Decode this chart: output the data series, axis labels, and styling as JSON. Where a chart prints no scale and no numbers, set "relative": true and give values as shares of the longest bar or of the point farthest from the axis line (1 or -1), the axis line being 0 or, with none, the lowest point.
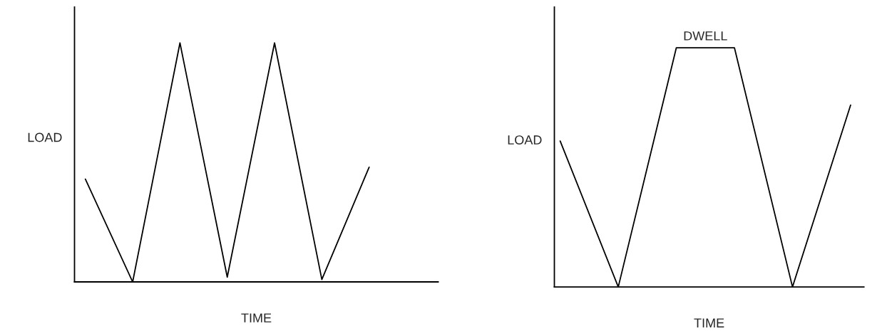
{
  "chart_data": [
    {
      "type": "line",
      "xlabel": "TIME",
      "ylabel": "LOAD",
      "relative": true,
      "categories": [
        null,
        null,
        null,
        null,
        null,
        null,
        null
      ],
      "series": [
        {
          "color": "#000000",
          "values": [
            0.43,
            0,
            1,
            0.02,
            1,
            0.01,
            0.48
          ]
        }
      ]
    },
    {
      "type": "line",
      "xlabel": "TIME",
      "ylabel": "LOAD",
      "relative": true,
      "annotations": [
        "DWELL"
      ],
      "categories": [
        null,
        null,
        null,
        null,
        null,
        null
      ],
      "series": [
        {
          "color": "#000000",
          "values": [
            0.61,
            0,
            1,
            1,
            0,
            0.76
          ]
        }
      ]
    }
  ]
}
